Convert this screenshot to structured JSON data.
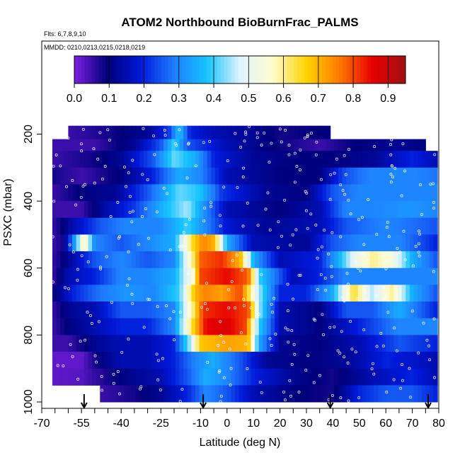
{
  "chart_data": {
    "type": "heatmap",
    "title": "ATOM2 Northbound BioBurnFrac_PALMS",
    "subtitle": "Flts: 6,7,8,9,10",
    "annotation": "MMDD: 0210,0213,0215,0218,0219",
    "xlabel": "Latitude (deg N)",
    "ylabel": "PSXC (mbar)",
    "xlim": [
      -70,
      80
    ],
    "ylim": [
      1000,
      100
    ],
    "x_ticks": [
      "-70",
      "-55",
      "-40",
      "-25",
      "-10",
      "0",
      "10",
      "20",
      "30",
      "40",
      "50",
      "60",
      "70",
      "80"
    ],
    "y_ticks": [
      "200",
      "400",
      "600",
      "800",
      "1000"
    ],
    "colorbar": {
      "ticks": [
        "0.0",
        "0.1",
        "0.2",
        "0.3",
        "0.4",
        "0.5",
        "0.6",
        "0.7",
        "0.8",
        "0.9"
      ],
      "range": [
        0,
        0.95
      ],
      "colors": [
        "#7b1fe0",
        "#00007a",
        "#0018d8",
        "#1f7bff",
        "#15c3ff",
        "#dff3ff",
        "#fffccf",
        "#ffd400",
        "#ff7a00",
        "#e60000",
        "#a01010"
      ]
    },
    "profile_markers_lat": [
      -54,
      -9,
      39,
      76
    ],
    "grid": false,
    "bands": [
      {
        "p": [
          175,
          215
        ],
        "x_range": [
          -60,
          38
        ],
        "knots": [
          [
            -60,
            0.05
          ],
          [
            -45,
            0.08
          ],
          [
            -30,
            0.12
          ],
          [
            -22,
            0.22
          ],
          [
            -18,
            0.38
          ],
          [
            -14,
            0.2
          ],
          [
            -5,
            0.15
          ],
          [
            10,
            0.12
          ],
          [
            20,
            0.08
          ],
          [
            38,
            0.1
          ]
        ]
      },
      {
        "p": [
          215,
          250
        ],
        "x_range": [
          -66,
          75
        ],
        "knots": [
          [
            -66,
            0.05
          ],
          [
            -50,
            0.05
          ],
          [
            -35,
            0.12
          ],
          [
            -25,
            0.25
          ],
          [
            -20,
            0.4
          ],
          [
            -15,
            0.25
          ],
          [
            0,
            0.15
          ],
          [
            15,
            0.1
          ],
          [
            35,
            0.05
          ],
          [
            50,
            0.1
          ],
          [
            65,
            0.12
          ],
          [
            75,
            0.1
          ]
        ]
      },
      {
        "p": [
          250,
          300
        ],
        "x_range": [
          -66,
          79
        ],
        "knots": [
          [
            -66,
            0.05
          ],
          [
            -52,
            0.08
          ],
          [
            -40,
            0.12
          ],
          [
            -28,
            0.25
          ],
          [
            -20,
            0.42
          ],
          [
            -12,
            0.35
          ],
          [
            -5,
            0.2
          ],
          [
            10,
            0.12
          ],
          [
            25,
            0.1
          ],
          [
            40,
            0.1
          ],
          [
            55,
            0.12
          ],
          [
            70,
            0.2
          ],
          [
            79,
            0.15
          ]
        ]
      },
      {
        "p": [
          300,
          350
        ],
        "x_range": [
          -66,
          79
        ],
        "knots": [
          [
            -66,
            0.08
          ],
          [
            -55,
            0.05
          ],
          [
            -40,
            0.1
          ],
          [
            -28,
            0.2
          ],
          [
            -18,
            0.35
          ],
          [
            -10,
            0.3
          ],
          [
            0,
            0.15
          ],
          [
            20,
            0.1
          ],
          [
            35,
            0.1
          ],
          [
            45,
            0.25
          ],
          [
            55,
            0.3
          ],
          [
            70,
            0.3
          ],
          [
            79,
            0.28
          ]
        ]
      },
      {
        "p": [
          350,
          400
        ],
        "x_range": [
          -66,
          79
        ],
        "knots": [
          [
            -66,
            0.05
          ],
          [
            -55,
            0.1
          ],
          [
            -42,
            0.12
          ],
          [
            -30,
            0.25
          ],
          [
            -18,
            0.42
          ],
          [
            -10,
            0.38
          ],
          [
            -2,
            0.22
          ],
          [
            15,
            0.12
          ],
          [
            30,
            0.1
          ],
          [
            40,
            0.25
          ],
          [
            50,
            0.3
          ],
          [
            60,
            0.3
          ],
          [
            79,
            0.3
          ]
        ]
      },
      {
        "p": [
          400,
          450
        ],
        "x_range": [
          -66,
          79
        ],
        "knots": [
          [
            -66,
            0.05
          ],
          [
            -55,
            0.05
          ],
          [
            -45,
            0.15
          ],
          [
            -35,
            0.22
          ],
          [
            -25,
            0.35
          ],
          [
            -15,
            0.45
          ],
          [
            -8,
            0.3
          ],
          [
            0,
            0.15
          ],
          [
            20,
            0.1
          ],
          [
            35,
            0.15
          ],
          [
            45,
            0.3
          ],
          [
            55,
            0.3
          ],
          [
            70,
            0.32
          ],
          [
            79,
            0.3
          ]
        ]
      },
      {
        "p": [
          450,
          500
        ],
        "x_range": [
          -66,
          79
        ],
        "knots": [
          [
            -66,
            0.05
          ],
          [
            -58,
            0.15
          ],
          [
            -48,
            0.25
          ],
          [
            -38,
            0.3
          ],
          [
            -25,
            0.3
          ],
          [
            -15,
            0.4
          ],
          [
            -8,
            0.3
          ],
          [
            0,
            0.18
          ],
          [
            15,
            0.12
          ],
          [
            35,
            0.15
          ],
          [
            45,
            0.25
          ],
          [
            60,
            0.3
          ],
          [
            79,
            0.25
          ]
        ]
      },
      {
        "p": [
          500,
          550
        ],
        "x_range": [
          -66,
          79
        ],
        "knots": [
          [
            -66,
            0.05
          ],
          [
            -62,
            0.08
          ],
          [
            -58,
            0.3
          ],
          [
            -54,
            0.6
          ],
          [
            -50,
            0.3
          ],
          [
            -40,
            0.25
          ],
          [
            -30,
            0.3
          ],
          [
            -20,
            0.35
          ],
          [
            -13,
            0.65
          ],
          [
            -9,
            0.75
          ],
          [
            -5,
            0.7
          ],
          [
            0,
            0.35
          ],
          [
            10,
            0.15
          ],
          [
            30,
            0.12
          ],
          [
            40,
            0.25
          ],
          [
            50,
            0.3
          ],
          [
            65,
            0.3
          ],
          [
            79,
            0.2
          ]
        ]
      },
      {
        "p": [
          550,
          600
        ],
        "x_range": [
          -66,
          79
        ],
        "knots": [
          [
            -66,
            0.05
          ],
          [
            -60,
            0.12
          ],
          [
            -50,
            0.25
          ],
          [
            -40,
            0.3
          ],
          [
            -30,
            0.25
          ],
          [
            -20,
            0.3
          ],
          [
            -13,
            0.6
          ],
          [
            -10,
            0.78
          ],
          [
            -2,
            0.82
          ],
          [
            5,
            0.7
          ],
          [
            10,
            0.35
          ],
          [
            20,
            0.15
          ],
          [
            35,
            0.2
          ],
          [
            42,
            0.35
          ],
          [
            48,
            0.5
          ],
          [
            55,
            0.6
          ],
          [
            62,
            0.55
          ],
          [
            70,
            0.35
          ],
          [
            79,
            0.25
          ]
        ]
      },
      {
        "p": [
          600,
          650
        ],
        "x_range": [
          -66,
          79
        ],
        "knots": [
          [
            -66,
            0.05
          ],
          [
            -60,
            0.15
          ],
          [
            -50,
            0.2
          ],
          [
            -40,
            0.3
          ],
          [
            -30,
            0.3
          ],
          [
            -20,
            0.35
          ],
          [
            -13,
            0.55
          ],
          [
            -10,
            0.8
          ],
          [
            0,
            0.85
          ],
          [
            8,
            0.78
          ],
          [
            12,
            0.4
          ],
          [
            25,
            0.15
          ],
          [
            35,
            0.2
          ],
          [
            45,
            0.3
          ],
          [
            55,
            0.3
          ],
          [
            70,
            0.3
          ],
          [
            79,
            0.3
          ]
        ]
      },
      {
        "p": [
          650,
          700
        ],
        "x_range": [
          -66,
          79
        ],
        "knots": [
          [
            -66,
            0.08
          ],
          [
            -58,
            0.2
          ],
          [
            -48,
            0.28
          ],
          [
            -38,
            0.32
          ],
          [
            -28,
            0.3
          ],
          [
            -18,
            0.4
          ],
          [
            -12,
            0.7
          ],
          [
            -8,
            0.75
          ],
          [
            -2,
            0.72
          ],
          [
            5,
            0.8
          ],
          [
            12,
            0.45
          ],
          [
            20,
            0.2
          ],
          [
            30,
            0.2
          ],
          [
            40,
            0.35
          ],
          [
            48,
            0.65
          ],
          [
            55,
            0.45
          ],
          [
            62,
            0.6
          ],
          [
            70,
            0.35
          ],
          [
            79,
            0.25
          ]
        ]
      },
      {
        "p": [
          700,
          750
        ],
        "x_range": [
          -66,
          79
        ],
        "knots": [
          [
            -66,
            0.05
          ],
          [
            -60,
            0.12
          ],
          [
            -50,
            0.15
          ],
          [
            -40,
            0.25
          ],
          [
            -30,
            0.25
          ],
          [
            -20,
            0.3
          ],
          [
            -13,
            0.6
          ],
          [
            -9,
            0.82
          ],
          [
            0,
            0.85
          ],
          [
            8,
            0.8
          ],
          [
            12,
            0.45
          ],
          [
            20,
            0.15
          ],
          [
            35,
            0.1
          ],
          [
            45,
            0.25
          ],
          [
            55,
            0.25
          ],
          [
            65,
            0.35
          ],
          [
            79,
            0.2
          ]
        ]
      },
      {
        "p": [
          750,
          800
        ],
        "x_range": [
          -66,
          79
        ],
        "knots": [
          [
            -66,
            0.05
          ],
          [
            -60,
            0.1
          ],
          [
            -50,
            0.15
          ],
          [
            -40,
            0.2
          ],
          [
            -30,
            0.2
          ],
          [
            -20,
            0.3
          ],
          [
            -13,
            0.65
          ],
          [
            -8,
            0.85
          ],
          [
            0,
            0.87
          ],
          [
            7,
            0.8
          ],
          [
            12,
            0.4
          ],
          [
            20,
            0.15
          ],
          [
            35,
            0.1
          ],
          [
            50,
            0.2
          ],
          [
            65,
            0.3
          ],
          [
            79,
            0.3
          ]
        ]
      },
      {
        "p": [
          800,
          850
        ],
        "x_range": [
          -66,
          79
        ],
        "knots": [
          [
            -66,
            0.05
          ],
          [
            -60,
            0.05
          ],
          [
            -50,
            0.12
          ],
          [
            -40,
            0.15
          ],
          [
            -30,
            0.15
          ],
          [
            -20,
            0.2
          ],
          [
            -14,
            0.45
          ],
          [
            -10,
            0.68
          ],
          [
            0,
            0.72
          ],
          [
            8,
            0.7
          ],
          [
            12,
            0.35
          ],
          [
            20,
            0.12
          ],
          [
            35,
            0.1
          ],
          [
            50,
            0.15
          ],
          [
            65,
            0.25
          ],
          [
            79,
            0.2
          ]
        ]
      },
      {
        "p": [
          850,
          900
        ],
        "x_range": [
          -66,
          79
        ],
        "knots": [
          [
            -66,
            0.02
          ],
          [
            -55,
            0.02
          ],
          [
            -48,
            0.1
          ],
          [
            -40,
            0.15
          ],
          [
            -30,
            0.15
          ],
          [
            -20,
            0.2
          ],
          [
            -12,
            0.3
          ],
          [
            -5,
            0.35
          ],
          [
            5,
            0.25
          ],
          [
            15,
            0.12
          ],
          [
            30,
            0.1
          ],
          [
            45,
            0.12
          ],
          [
            60,
            0.2
          ],
          [
            79,
            0.15
          ]
        ]
      },
      {
        "p": [
          900,
          950
        ],
        "x_range": [
          -66,
          79
        ],
        "knots": [
          [
            -66,
            0.02
          ],
          [
            -55,
            0.03
          ],
          [
            -45,
            0.08
          ],
          [
            -35,
            0.12
          ],
          [
            -25,
            0.15
          ],
          [
            -15,
            0.25
          ],
          [
            -8,
            0.35
          ],
          [
            0,
            0.3
          ],
          [
            10,
            0.2
          ],
          [
            25,
            0.12
          ],
          [
            40,
            0.08
          ],
          [
            55,
            0.15
          ],
          [
            70,
            0.2
          ],
          [
            79,
            0.15
          ]
        ]
      },
      {
        "p": [
          950,
          1000
        ],
        "x_range": [
          -48,
          79
        ],
        "knots": [
          [
            -48,
            0.05
          ],
          [
            -35,
            0.08
          ],
          [
            -25,
            0.12
          ],
          [
            -15,
            0.2
          ],
          [
            -8,
            0.3
          ],
          [
            0,
            0.25
          ],
          [
            10,
            0.15
          ],
          [
            25,
            0.1
          ],
          [
            40,
            0.08
          ],
          [
            50,
            0.2
          ],
          [
            60,
            0.25
          ],
          [
            70,
            0.25
          ],
          [
            79,
            0.2
          ]
        ]
      }
    ]
  }
}
